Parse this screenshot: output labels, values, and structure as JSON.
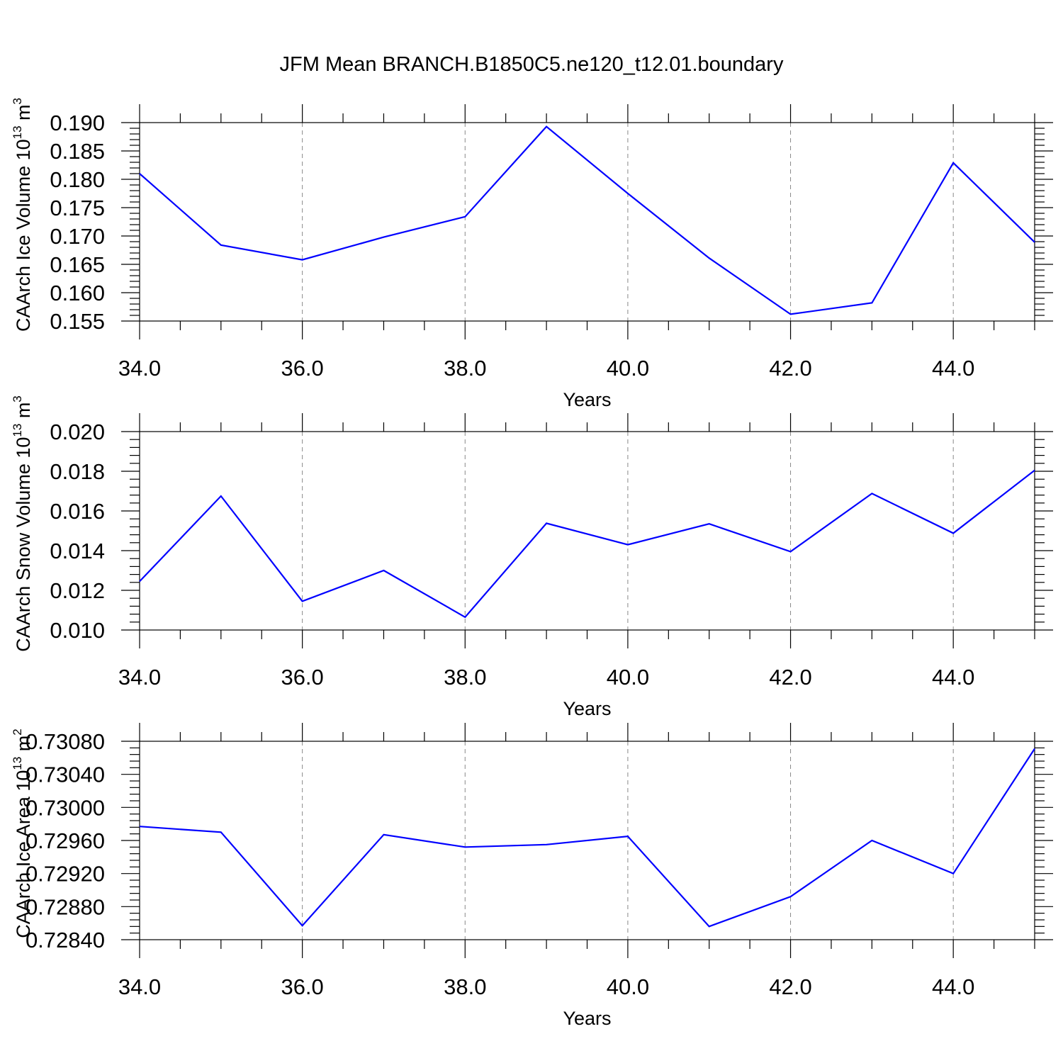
{
  "title": "JFM Mean BRANCH.B1850C5.ne120_t12.01.boundary",
  "colors": {
    "line": "#0000ff",
    "axis": "#000000",
    "grid": "#888888"
  },
  "chart_data": [
    {
      "type": "line",
      "title": "JFM Mean BRANCH.B1850C5.ne120_t12.01.boundary",
      "xlabel": "Years",
      "ylabel_text": "CAArch Ice Volume 10",
      "ylabel_exponent": "13",
      "ylabel_unit": "m",
      "ylabel_unit_exponent": "3",
      "xlim": [
        34,
        45
      ],
      "ylim": [
        0.155,
        0.19
      ],
      "x_ticks": [
        "34.0",
        "36.0",
        "38.0",
        "40.0",
        "42.0",
        "44.0"
      ],
      "y_ticks": [
        "0.155",
        "0.160",
        "0.165",
        "0.170",
        "0.175",
        "0.180",
        "0.185",
        "0.190"
      ],
      "grid": "vertical dashed at major x ticks",
      "x": [
        34,
        35,
        36,
        37,
        38,
        39,
        40,
        41,
        42,
        43,
        44,
        45
      ],
      "y": [
        0.181,
        0.1684,
        0.1658,
        0.1698,
        0.1734,
        0.1893,
        0.1775,
        0.1661,
        0.1562,
        0.1582,
        0.1829,
        0.1689
      ]
    },
    {
      "type": "line",
      "xlabel": "Years",
      "ylabel_text": "CAArch Snow Volume 10",
      "ylabel_exponent": "13",
      "ylabel_unit": "m",
      "ylabel_unit_exponent": "3",
      "xlim": [
        34,
        45
      ],
      "ylim": [
        0.01,
        0.02
      ],
      "x_ticks": [
        "34.0",
        "36.0",
        "38.0",
        "40.0",
        "42.0",
        "44.0"
      ],
      "y_ticks": [
        "0.010",
        "0.012",
        "0.014",
        "0.016",
        "0.018",
        "0.020"
      ],
      "grid": "vertical dashed at major x ticks",
      "x": [
        34,
        35,
        36,
        37,
        38,
        39,
        40,
        41,
        42,
        43,
        44,
        45
      ],
      "y": [
        0.01245,
        0.01675,
        0.01145,
        0.013,
        0.01065,
        0.01538,
        0.0143,
        0.01535,
        0.01395,
        0.01688,
        0.01488,
        0.01805
      ]
    },
    {
      "type": "line",
      "xlabel": "Years",
      "ylabel_text": "CAArch Ice Area 10",
      "ylabel_exponent": "13",
      "ylabel_unit": "m",
      "ylabel_unit_exponent": "2",
      "xlim": [
        34,
        45
      ],
      "ylim": [
        0.7284,
        0.7308
      ],
      "x_ticks": [
        "34.0",
        "36.0",
        "38.0",
        "40.0",
        "42.0",
        "44.0"
      ],
      "y_ticks": [
        "0.72840",
        "0.72880",
        "0.72920",
        "0.72960",
        "0.73000",
        "0.73040",
        "0.73080"
      ],
      "grid": "vertical dashed at major x ticks",
      "x": [
        34,
        35,
        36,
        37,
        38,
        39,
        40,
        41,
        42,
        43,
        44,
        45
      ],
      "y": [
        0.72977,
        0.7297,
        0.72857,
        0.72967,
        0.72952,
        0.72955,
        0.72965,
        0.72856,
        0.72892,
        0.7296,
        0.7292,
        0.73071
      ]
    }
  ]
}
